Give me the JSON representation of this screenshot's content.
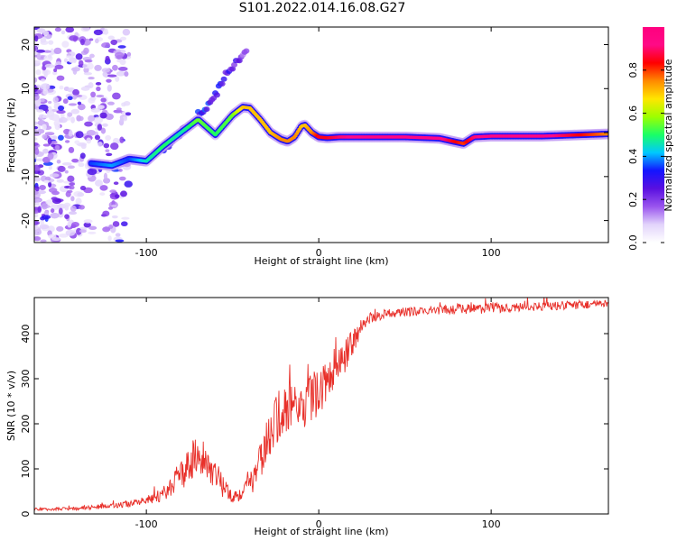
{
  "figure": {
    "title": "S101.2022.014.16.08.G27"
  },
  "colors": {
    "axis": "#000000",
    "snr_line": "#e8302a",
    "colormap": [
      "#ffffff",
      "#e2d4fb",
      "#9a55ee",
      "#5a10e0",
      "#1414ff",
      "#00c8ff",
      "#19ff66",
      "#9dff00",
      "#ffe600",
      "#ff8a00",
      "#ff0000",
      "#ff0a86",
      "#ff007f"
    ]
  },
  "chart_data": [
    {
      "type": "heatmap",
      "title": "",
      "xlabel": "Height of straight line (km)",
      "ylabel": "Frequency (Hz)",
      "xlim": [
        -165,
        168
      ],
      "ylim": [
        -25,
        24
      ],
      "x_ticks": [
        -100,
        0,
        100
      ],
      "y_ticks": [
        -20,
        -10,
        0,
        10,
        20
      ],
      "grid": false,
      "colorbar": {
        "label": "Normalized spectral amplitude",
        "range": [
          0,
          1
        ],
        "ticks": [
          "0.0",
          "0.2",
          "0.4",
          "0.6",
          "0.8"
        ]
      },
      "ridge": {
        "x": [
          -132,
          -120,
          -110,
          -100,
          -90,
          -80,
          -70,
          -60,
          -50,
          -44,
          -40,
          -34,
          -28,
          -22,
          -18,
          -14,
          -10,
          -8,
          -4,
          0,
          5,
          12,
          30,
          50,
          70,
          78,
          84,
          90,
          100,
          130,
          168
        ],
        "y": [
          -7,
          -7.5,
          -6,
          -6.5,
          -3,
          0,
          3,
          -0.5,
          4,
          5.8,
          5.6,
          3,
          0,
          -1.5,
          -2,
          -1,
          1.5,
          1.7,
          0,
          -1,
          -1.2,
          -1,
          -1,
          -1,
          -1.3,
          -2,
          -2.5,
          -1,
          -0.8,
          -0.8,
          -0.3
        ],
        "amplitude": [
          0.35,
          0.4,
          0.35,
          0.45,
          0.5,
          0.45,
          0.55,
          0.5,
          0.55,
          0.7,
          0.7,
          0.7,
          0.7,
          0.75,
          0.75,
          0.75,
          0.7,
          0.7,
          0.75,
          0.85,
          0.85,
          0.9,
          0.95,
          0.95,
          0.95,
          0.85,
          0.8,
          0.9,
          0.95,
          0.95,
          0.75
        ]
      },
      "secondary_branch": {
        "x": [
          -95,
          -85,
          -75,
          -68,
          -62,
          -58,
          -54,
          -50,
          -46,
          -42
        ],
        "y": [
          -5,
          -2,
          2,
          5,
          7,
          10,
          13,
          15,
          17,
          19
        ],
        "amplitude": [
          0.3,
          0.3,
          0.3,
          0.35,
          0.35,
          0.35,
          0.3,
          0.3,
          0.25,
          0.2
        ]
      }
    },
    {
      "type": "line",
      "title": "",
      "xlabel": "Height of straight line (km)",
      "ylabel": "SNR (10 * v/v)",
      "xlim": [
        -165,
        168
      ],
      "ylim": [
        0,
        480
      ],
      "x_ticks": [
        -100,
        0,
        100
      ],
      "y_ticks": [
        0,
        100,
        200,
        300,
        400
      ],
      "grid": false,
      "series": [
        {
          "name": "",
          "x": [
            -165,
            -140,
            -120,
            -105,
            -95,
            -88,
            -82,
            -78,
            -74,
            -70,
            -66,
            -62,
            -58,
            -54,
            -50,
            -45,
            -40,
            -36,
            -32,
            -28,
            -24,
            -20,
            -16,
            -12,
            -8,
            -4,
            0,
            4,
            8,
            12,
            16,
            20,
            25,
            30,
            40,
            50,
            60,
            70,
            80,
            90,
            100,
            110,
            120,
            130,
            140,
            150,
            160,
            168
          ],
          "y": [
            10,
            12,
            18,
            25,
            35,
            50,
            75,
            90,
            120,
            140,
            115,
            100,
            75,
            55,
            40,
            45,
            70,
            90,
            140,
            180,
            210,
            230,
            240,
            220,
            250,
            260,
            270,
            290,
            320,
            340,
            355,
            380,
            420,
            435,
            445,
            448,
            450,
            452,
            455,
            455,
            458,
            456,
            460,
            460,
            462,
            464,
            465,
            465
          ],
          "noise": [
            3,
            4,
            6,
            8,
            12,
            18,
            28,
            35,
            45,
            40,
            40,
            35,
            30,
            25,
            15,
            18,
            28,
            35,
            45,
            55,
            60,
            55,
            55,
            60,
            55,
            55,
            50,
            45,
            45,
            45,
            40,
            30,
            15,
            12,
            10,
            10,
            10,
            10,
            12,
            12,
            12,
            10,
            10,
            10,
            10,
            10,
            10,
            10
          ]
        }
      ]
    }
  ]
}
